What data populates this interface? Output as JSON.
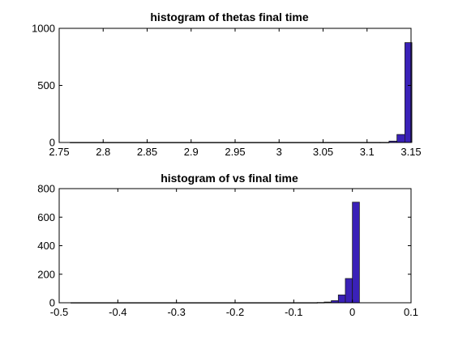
{
  "colors": {
    "bar_fill": "#3a21b8",
    "bar_edge": "#1a1a1a",
    "axis": "#000000",
    "background": "#ffffff"
  },
  "chart_data": [
    {
      "type": "bar",
      "title": "histogram of thetas final time",
      "xlabel": "",
      "ylabel": "",
      "xlim": [
        2.75,
        3.15
      ],
      "ylim": [
        0,
        1000
      ],
      "xticks": [
        2.75,
        2.8,
        2.85,
        2.9,
        2.95,
        3.0,
        3.05,
        3.1,
        3.15
      ],
      "xtick_labels": [
        "2.75",
        "2.8",
        "2.85",
        "2.9",
        "2.95",
        "3",
        "3.05",
        "3.1",
        "3.15"
      ],
      "yticks": [
        0,
        500,
        1000
      ],
      "ytick_labels": [
        "0",
        "500",
        "1000"
      ],
      "bin_edges": [
        2.7625,
        3.115,
        3.125,
        3.134,
        3.143
      ],
      "values": [
        1,
        1,
        12,
        70,
        875
      ],
      "bins": [
        {
          "x0": 2.7625,
          "x1": 3.115,
          "count": 1
        },
        {
          "x0": 3.115,
          "x1": 3.125,
          "count": 1
        },
        {
          "x0": 3.125,
          "x1": 3.134,
          "count": 12
        },
        {
          "x0": 3.134,
          "x1": 3.143,
          "count": 70
        },
        {
          "x0": 3.143,
          "x1": 3.151,
          "count": 875
        }
      ],
      "grid": false,
      "legend": "none"
    },
    {
      "type": "bar",
      "title": "histogram of vs final time",
      "xlabel": "",
      "ylabel": "",
      "xlim": [
        -0.5,
        0.1
      ],
      "ylim": [
        0,
        800
      ],
      "xticks": [
        -0.5,
        -0.4,
        -0.3,
        -0.2,
        -0.1,
        0,
        0.1
      ],
      "xtick_labels": [
        "-0.5",
        "-0.4",
        "-0.3",
        "-0.2",
        "-0.1",
        "0",
        "0.1"
      ],
      "yticks": [
        0,
        200,
        400,
        600,
        800
      ],
      "ytick_labels": [
        "0",
        "200",
        "400",
        "600",
        "800"
      ],
      "bins": [
        {
          "x0": -0.48,
          "x1": -0.06,
          "count": 1
        },
        {
          "x0": -0.06,
          "x1": -0.048,
          "count": 2
        },
        {
          "x0": -0.048,
          "x1": -0.036,
          "count": 5
        },
        {
          "x0": -0.036,
          "x1": -0.024,
          "count": 15
        },
        {
          "x0": -0.024,
          "x1": -0.012,
          "count": 55
        },
        {
          "x0": -0.012,
          "x1": -0.0,
          "count": 170
        },
        {
          "x0": -0.0,
          "x1": 0.012,
          "count": 705
        }
      ],
      "grid": false,
      "legend": "none"
    }
  ]
}
